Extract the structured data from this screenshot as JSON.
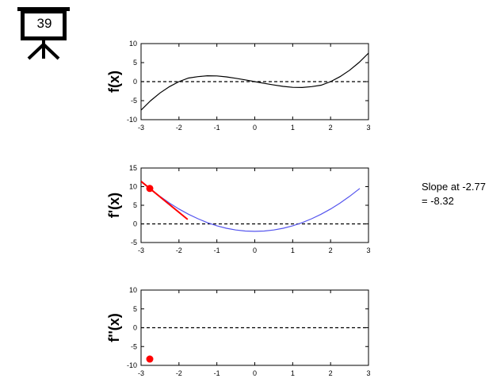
{
  "slide": {
    "badge_icon": "projector-screen-icon",
    "number": "39"
  },
  "annotation": {
    "line1": "Slope at -2.77",
    "line2": "= -8.32"
  },
  "colors": {
    "function": "#000000",
    "derivative": "#5555ee",
    "tangent": "#ff0000",
    "point": "#ff0000",
    "axis": "#000000",
    "zero_line": "#000000"
  },
  "chart_data": [
    {
      "type": "line",
      "ylabel": "f(x)",
      "xlim": [
        -3,
        3
      ],
      "ylim": [
        -10,
        10
      ],
      "xticks": [
        -3,
        -2,
        -1,
        0,
        1,
        2,
        3
      ],
      "yticks": [
        -10,
        -5,
        0,
        5,
        10
      ],
      "zero_line": "dashed",
      "series": [
        {
          "x": [
            -3,
            -2.75,
            -2.5,
            -2.25,
            -2,
            -1.75,
            -1.5,
            -1.25,
            -1,
            -0.75,
            -0.5,
            -0.25,
            0,
            0.25,
            0.5,
            0.75,
            1,
            1.25,
            1.5,
            1.75,
            2,
            2.25,
            2.5,
            2.75,
            3
          ],
          "y": [
            -7.5,
            -5.02,
            -2.97,
            -1.32,
            0,
            0.93,
            1.31,
            1.54,
            1.5,
            1.26,
            0.88,
            0.46,
            0,
            -0.46,
            -0.88,
            -1.26,
            -1.5,
            -1.54,
            -1.31,
            -0.93,
            0,
            1.32,
            2.97,
            5.02,
            7.5
          ]
        }
      ]
    },
    {
      "type": "line",
      "ylabel": "f'(x)",
      "xlim": [
        -3,
        3
      ],
      "ylim": [
        -5,
        15
      ],
      "xticks": [
        -3,
        -2,
        -1,
        0,
        1,
        2,
        3
      ],
      "yticks": [
        -5,
        0,
        5,
        10,
        15
      ],
      "zero_line": "dashed",
      "series": [
        {
          "x": [
            -2.77,
            -2.5,
            -2.25,
            -2,
            -1.75,
            -1.5,
            -1.25,
            -1,
            -0.75,
            -0.5,
            -0.25,
            0,
            0.25,
            0.5,
            0.75,
            1,
            1.25,
            1.5,
            1.75,
            2,
            2.25,
            2.5,
            2.77
          ],
          "y": [
            9.51,
            7.38,
            5.59,
            4,
            2.59,
            1.38,
            0.34,
            -0.5,
            -1.16,
            -1.63,
            -1.91,
            -2,
            -1.91,
            -1.63,
            -1.16,
            -0.5,
            0.34,
            1.38,
            2.59,
            4,
            5.59,
            7.38,
            9.51
          ]
        }
      ],
      "tangent": {
        "x": [
          -3,
          -1.77
        ],
        "y": [
          11.42,
          1.19
        ]
      },
      "point": {
        "x": -2.77,
        "y": 9.51
      }
    },
    {
      "type": "scatter",
      "ylabel": "f''(x)",
      "xlim": [
        -3,
        3
      ],
      "ylim": [
        -10,
        10
      ],
      "xticks": [
        -3,
        -2,
        -1,
        0,
        1,
        2,
        3
      ],
      "yticks": [
        -10,
        -5,
        0,
        5,
        10
      ],
      "zero_line": "dashed",
      "series": [],
      "point": {
        "x": -2.77,
        "y": -8.32
      }
    }
  ]
}
